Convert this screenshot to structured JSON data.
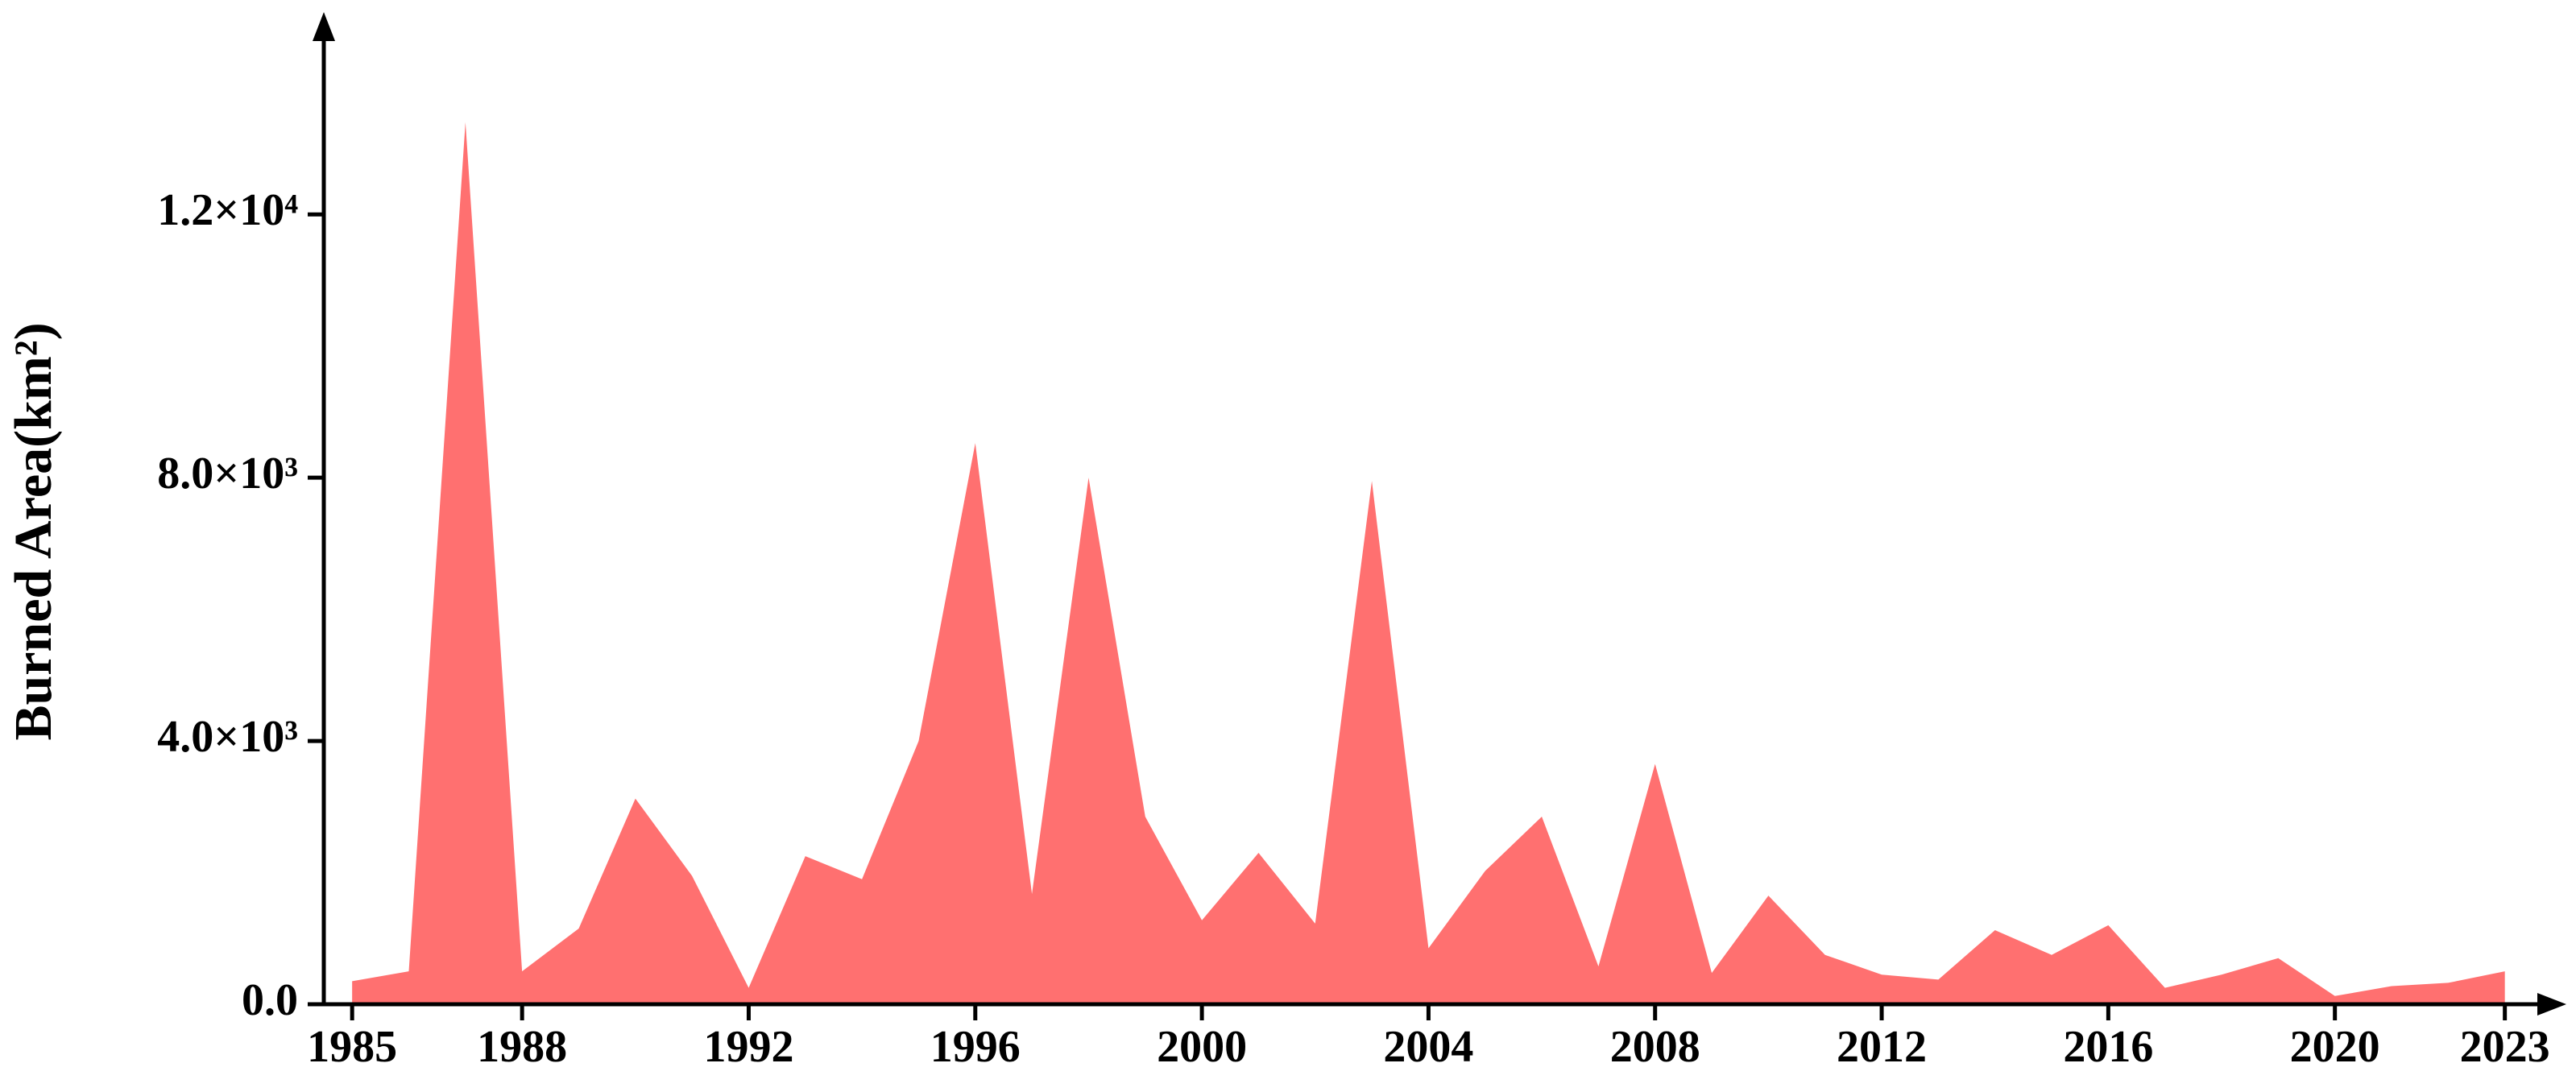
{
  "chart_data": {
    "type": "area",
    "y_label": "Burned Area(km²)",
    "x": [
      1985,
      1986,
      1987,
      1988,
      1989,
      1990,
      1991,
      1992,
      1993,
      1994,
      1995,
      1996,
      1997,
      1998,
      1999,
      2000,
      2001,
      2002,
      2003,
      2004,
      2005,
      2006,
      2007,
      2008,
      2009,
      2010,
      2011,
      2012,
      2013,
      2014,
      2015,
      2016,
      2017,
      2018,
      2019,
      2020,
      2021,
      2022,
      2023
    ],
    "values": [
      350,
      500,
      13400,
      500,
      1150,
      3125,
      1950,
      250,
      2250,
      1900,
      4000,
      8525,
      1675,
      8000,
      2850,
      1275,
      2300,
      1225,
      7950,
      850,
      2025,
      2850,
      575,
      3650,
      475,
      1650,
      750,
      450,
      375,
      1125,
      750,
      1200,
      250,
      450,
      700,
      125,
      275,
      325,
      500
    ],
    "color": "#ff7070",
    "xlim": [
      1984.5,
      2024
    ],
    "ylim": [
      0,
      15000
    ],
    "xticks": [
      1985,
      1988,
      1992,
      1996,
      2000,
      2004,
      2008,
      2012,
      2016,
      2020,
      2023
    ],
    "yticks": [
      {
        "value": 0,
        "label": "0.0"
      },
      {
        "value": 4000,
        "label": "4.0×10³"
      },
      {
        "value": 8000,
        "label": "8.0×10³"
      },
      {
        "value": 12000,
        "label": "1.2×10⁴"
      }
    ]
  }
}
